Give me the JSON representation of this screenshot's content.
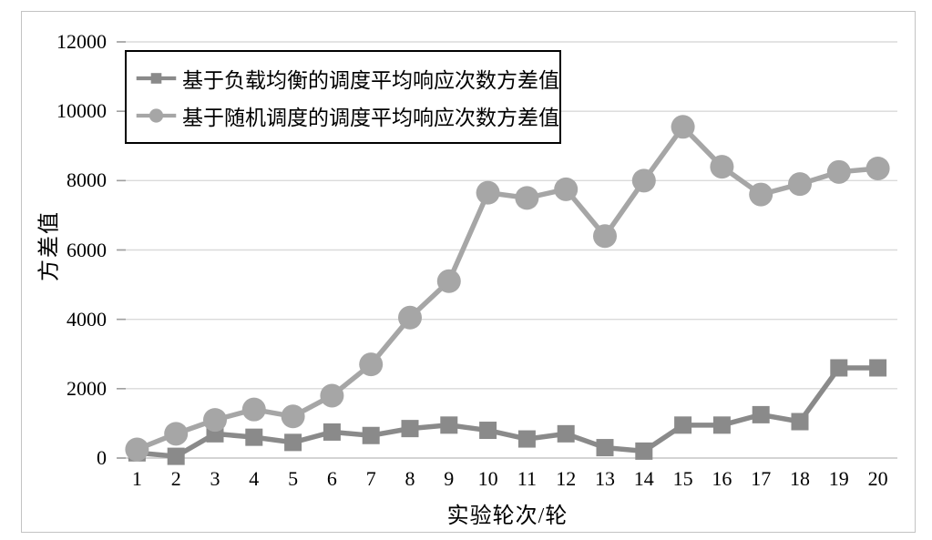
{
  "chart_data": {
    "type": "line",
    "title": "",
    "xlabel": "实验轮次/轮",
    "ylabel": "方差值",
    "categories": [
      1,
      2,
      3,
      4,
      5,
      6,
      7,
      8,
      9,
      10,
      11,
      12,
      13,
      14,
      15,
      16,
      17,
      18,
      19,
      20
    ],
    "yticks": [
      0,
      2000,
      4000,
      6000,
      8000,
      10000,
      12000
    ],
    "ylim": [
      0,
      12000
    ],
    "grid": "horizontal",
    "legend_position": "top-left-inside",
    "series": [
      {
        "name": "基于负载均衡的调度平均响应次数方差值",
        "marker": "square",
        "color": "#8a8a8a",
        "values": [
          150,
          50,
          700,
          600,
          450,
          750,
          650,
          850,
          950,
          800,
          550,
          700,
          300,
          200,
          950,
          950,
          1250,
          1050,
          2600,
          2600
        ]
      },
      {
        "name": "基于随机调度的调度平均响应次数方差值",
        "marker": "circle",
        "color": "#a6a6a6",
        "values": [
          250,
          700,
          1100,
          1400,
          1200,
          1800,
          2700,
          4050,
          5100,
          7650,
          7500,
          7750,
          6400,
          8000,
          9550,
          8400,
          7600,
          7900,
          8250,
          8350
        ]
      }
    ]
  },
  "colors": {
    "background": "#ffffff",
    "frame_border": "#c3c3c3",
    "gridline": "#dadada",
    "zero_line": "#c6c6c6",
    "tick_mark": "#9f9f9f",
    "text": "#000000",
    "legend_border": "#000000"
  }
}
